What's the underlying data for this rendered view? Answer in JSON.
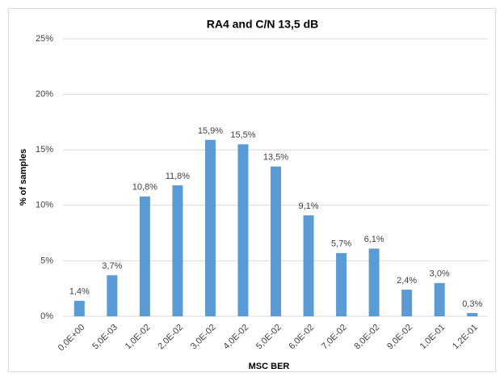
{
  "chart_data": {
    "type": "bar",
    "title": "RA4 and C/N 13,5 dB",
    "x_label": "MSC BER",
    "y_label": "% of samples",
    "categories": [
      "0,0E+00",
      "5,0E-03",
      "1,0E-02",
      "2,0E-02",
      "3,0E-02",
      "4,0E-02",
      "5,0E-02",
      "6,0E-02",
      "7,0E-02",
      "8,0E-02",
      "9,0E-02",
      "1,0E-01",
      "1,2E-01"
    ],
    "values": [
      1.4,
      3.7,
      10.8,
      11.8,
      15.9,
      15.5,
      13.5,
      9.1,
      5.7,
      6.1,
      2.4,
      3.0,
      0.3
    ],
    "value_labels": [
      "1,4%",
      "3,7%",
      "10,8%",
      "11,8%",
      "15,9%",
      "15,5%",
      "13,5%",
      "9,1%",
      "5,7%",
      "6,1%",
      "2,4%",
      "3,0%",
      "0,3%"
    ],
    "color": "#5b9bd5",
    "ylim": [
      0,
      25
    ],
    "yticks": [
      {
        "value": 0,
        "label": "0%"
      },
      {
        "value": 5,
        "label": "5%"
      },
      {
        "value": 10,
        "label": "10%"
      },
      {
        "value": 15,
        "label": "15%"
      },
      {
        "value": 20,
        "label": "20%"
      },
      {
        "value": 25,
        "label": "25%"
      }
    ],
    "grid": true
  }
}
